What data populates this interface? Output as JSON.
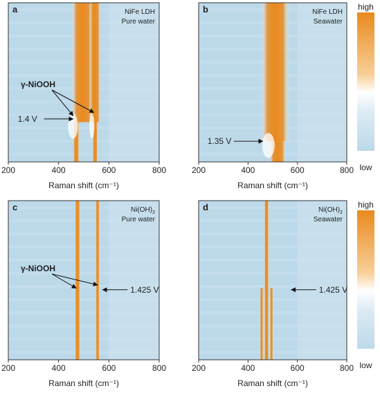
{
  "chart_data": [
    {
      "type": "heatmap",
      "panel_letter": "a",
      "sample": "NiFe LDH",
      "electrolyte": "Pure water",
      "xlabel": "Raman shift (cm⁻¹)",
      "xlim": [
        200,
        800
      ],
      "xticks": [
        "200",
        "400",
        "600",
        "800"
      ],
      "bands": [
        {
          "x_upper": 495,
          "x_lower": 470,
          "w_upper": 28,
          "w_lower": 8,
          "split": 0.75
        },
        {
          "x_upper": 545,
          "x_lower": 545,
          "w_upper": 14,
          "w_lower": 7,
          "split": 0.75
        }
      ],
      "peak_label": "γ-NiOOH",
      "voltage_label": "1.4 V",
      "annotation_targets": [
        {
          "x": 458,
          "y": 0.71
        },
        {
          "x": 540,
          "y": 0.69
        }
      ],
      "arrow_target": {
        "x": 458,
        "y": 0.73
      }
    },
    {
      "type": "heatmap",
      "panel_letter": "b",
      "sample": "NiFe LDH",
      "electrolyte": "Seawater",
      "xlabel": "Raman shift (cm⁻¹)",
      "xlim": [
        200,
        800
      ],
      "xticks": [
        "200",
        "400",
        "600",
        "800"
      ],
      "bands": [
        {
          "x_upper": 510,
          "x_lower": 520,
          "w_upper": 36,
          "w_lower": 22,
          "split": 0.87
        }
      ],
      "voltage_label": "1.35 V",
      "arrow_target": {
        "x": 460,
        "y": 0.87
      }
    },
    {
      "type": "heatmap",
      "panel_letter": "c",
      "sample": "Ni(OH)",
      "sample_subscript": "2",
      "electrolyte": "Pure water",
      "xlabel": "Raman shift (cm⁻¹)",
      "xlim": [
        200,
        800
      ],
      "xticks": [
        "200",
        "400",
        "600",
        "800"
      ],
      "bands": [
        {
          "x_upper": 475,
          "x_lower": 475,
          "w_upper": 7,
          "w_lower": 7,
          "split": 0.5
        },
        {
          "x_upper": 555,
          "x_lower": 555,
          "w_upper": 5,
          "w_lower": 5,
          "split": 0.5
        }
      ],
      "peak_label": "γ-NiOOH",
      "voltage_label": "1.425 V",
      "annotation_targets": [
        {
          "x": 470,
          "y": 0.55
        },
        {
          "x": 555,
          "y": 0.53
        }
      ],
      "arrow_target": {
        "x": 575,
        "y": 0.56
      }
    },
    {
      "type": "heatmap",
      "panel_letter": "d",
      "sample": "Ni(OH)",
      "sample_subscript": "2",
      "electrolyte": "Seawater",
      "xlabel": "Raman shift (cm⁻¹)",
      "xlim": [
        200,
        800
      ],
      "xticks": [
        "200",
        "400",
        "600",
        "800"
      ],
      "bands": [
        {
          "x_upper": 475,
          "x_lower": 475,
          "w_upper": 6,
          "w_lower": 6,
          "split": 0.55
        },
        {
          "x_upper": 455,
          "x_lower": 455,
          "w_upper": 0,
          "w_lower": 4,
          "split": 0.55
        },
        {
          "x_upper": 495,
          "x_lower": 495,
          "w_upper": 0,
          "w_lower": 4,
          "split": 0.55
        }
      ],
      "voltage_label": "1.425 V",
      "arrow_target": {
        "x": 575,
        "y": 0.56
      }
    }
  ],
  "colorbars": [
    {
      "high_label": "high",
      "low_label": "low"
    },
    {
      "high_label": "high",
      "low_label": "low"
    }
  ],
  "colors": {
    "background": "#bcd9ea",
    "mid": "#ffffff",
    "high": "#e98a1e"
  }
}
